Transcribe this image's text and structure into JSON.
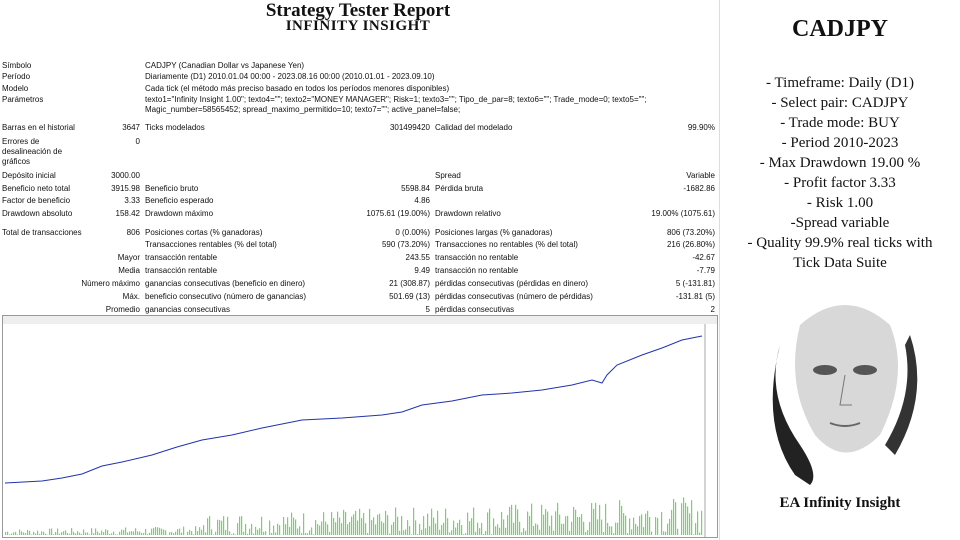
{
  "report": {
    "title": "Strategy Tester Report",
    "subtitle": "INFINITY INSIGHT",
    "rows": [
      [
        "Símbolo",
        null,
        "CADJPY (Canadian Dollar vs Japanese Yen)"
      ],
      [
        "Período",
        null,
        "Diariamente (D1) 2010.01.04 00:00 - 2023.08.16 00:00 (2010.01.01 - 2023.09.10)"
      ],
      [
        "Modelo",
        null,
        "Cada tick (el método más preciso basado en todos los períodos menores disponibles)"
      ],
      [
        "Parámetros",
        null,
        "texto1=\"Infinity Insight 1.00\"; texto4=\"\"; texto2=\"MONEY MANAGER\"; Risk=1; texto3=\"\"; Tipo_de_par=8; texto6=\"\"; Trade_mode=0; texto5=\"\"; Magic_number=58565452; spread_maximo_permitido=10; texto7=\"\"; active_panel=false;"
      ],
      [
        "Barras en el historial",
        "3647",
        "Ticks modelados",
        "301499420",
        "Calidad del modelado",
        "99.90%"
      ],
      [
        "Errores de desalineación de gráficos",
        "0"
      ],
      [
        "Depósito inicial",
        "3000.00",
        null,
        null,
        "Spread",
        "Variable"
      ],
      [
        "Beneficio neto total",
        "3915.98",
        "Beneficio bruto",
        "5598.84",
        "Pérdida bruta",
        "-1682.86"
      ],
      [
        "Factor de beneficio",
        "3.33",
        "Beneficio esperado",
        "4.86"
      ],
      [
        "Drawdown absoluto",
        "158.42",
        "Drawdown máximo",
        "1075.61 (19.00%)",
        "Drawdown relativo",
        "19.00% (1075.61)"
      ],
      [
        "Total de transacciones",
        "806",
        "Posiciones cortas (% ganadoras)",
        "0 (0.00%)",
        "Posiciones largas (% ganadoras)",
        "806 (73.20%)"
      ],
      [
        null,
        null,
        "Transacciones rentables (% del total)",
        "590 (73.20%)",
        "Transacciones no rentables (% del total)",
        "216 (26.80%)"
      ],
      [
        null,
        "Mayor",
        "transacción rentable",
        "243.55",
        "transacción no rentable",
        "-42.67"
      ],
      [
        null,
        "Media",
        "transacción rentable",
        "9.49",
        "transacción no rentable",
        "-7.79"
      ],
      [
        null,
        "Número máximo",
        "ganancias consecutivas (beneficio en dinero)",
        "21 (308.87)",
        "pérdidas consecutivas (pérdidas en dinero)",
        "5 (-131.81)"
      ],
      [
        null,
        "Máx.",
        "beneficio consecutivo (número de ganancias)",
        "501.69 (13)",
        "pérdidas consecutivas (número de pérdidas)",
        "-131.81 (5)"
      ],
      [
        null,
        "Promedio",
        "ganancias consecutivas",
        "5",
        "pérdidas consecutivas",
        "2"
      ]
    ]
  },
  "sidebar": {
    "title": "CADJPY",
    "lines": [
      "- Timeframe: Daily (D1)",
      "- Select pair: CADJPY",
      "- Trade mode: BUY",
      "- Period 2010-2023",
      "- Max Drawdown 19.00 %",
      "- Profit factor 3.33",
      "- Risk 1.00",
      "-Spread variable",
      "- Quality 99.9% real ticks with",
      "Tick Data Suite"
    ],
    "caption": "EA Infinity Insight"
  }
}
